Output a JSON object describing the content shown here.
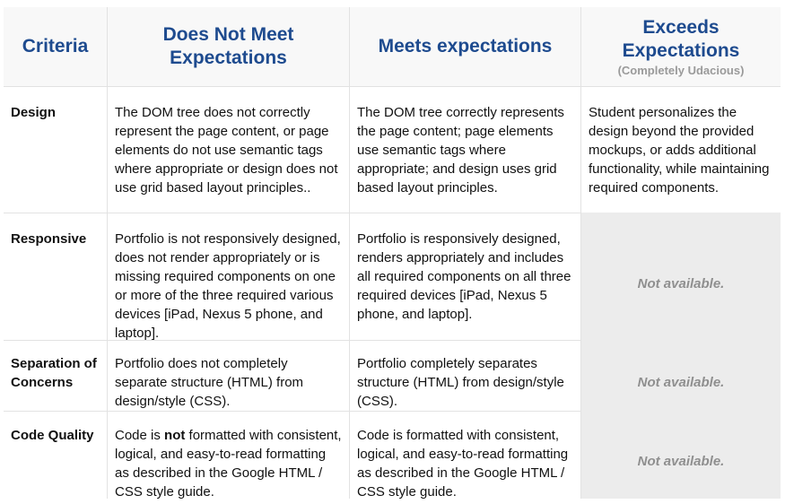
{
  "header": {
    "criteria": "Criteria",
    "does_not_meet": "Does Not Meet Expectations",
    "meets": "Meets expectations",
    "exceeds": "Exceeds Expectations",
    "exceeds_sub": "(Completely Udacious)"
  },
  "rows": [
    {
      "criteria": "Design",
      "does_not_meet": "The DOM tree does not correctly represent the page content, or page elements do not use semantic tags where appropriate or design does not use grid based layout principles..",
      "meets": "The DOM tree correctly represents the page content; page elements use semantic tags where appropriate; and design uses grid based layout principles.",
      "exceeds": "Student personalizes the design beyond the provided mockups, or adds additional functionality, while maintaining required components."
    },
    {
      "criteria": "Responsive",
      "does_not_meet": "Portfolio is not responsively designed, does not render appropriately or is missing required components on one or more of the three required various devices [iPad, Nexus 5 phone, and laptop].",
      "meets": "Portfolio is responsively designed, renders appropriately and includes all required components on all three required devices [iPad, Nexus 5 phone, and laptop].",
      "exceeds": "Not available."
    },
    {
      "criteria": "Separation of Concerns",
      "does_not_meet": "Portfolio does not completely separate structure (HTML) from design/style (CSS).",
      "meets": "Portfolio completely separates structure (HTML) from design/style (CSS).",
      "exceeds": "Not available."
    },
    {
      "criteria": "Code Quality",
      "does_not_meet_pre": "Code is ",
      "does_not_meet_bold": "not",
      "does_not_meet_post": " formatted with consistent, logical, and easy-to-read formatting as described in the Google HTML / CSS style guide.",
      "meets": "Code is formatted with consistent, logical, and easy-to-read formatting as described in the Google HTML / CSS style guide.",
      "exceeds": "Not available."
    }
  ],
  "colors": {
    "header_text": "#1e4b8f",
    "header_bg": "#f8f8f8",
    "not_available_bg": "#ececec",
    "not_available_text": "#8f8f8f",
    "grid_line": "#e2e2e2"
  }
}
